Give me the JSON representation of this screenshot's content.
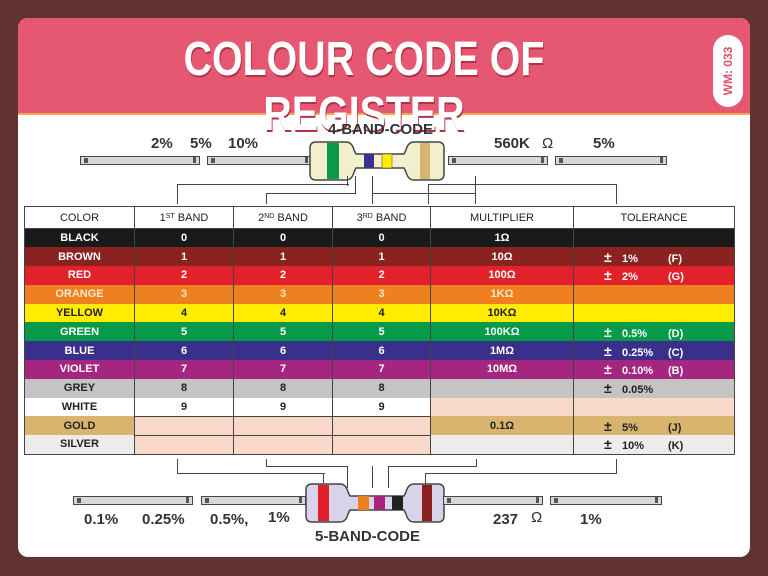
{
  "header": {
    "title": "COLOUR CODE OF REGISTER",
    "badge": "WM: 033"
  },
  "four_band": {
    "label": "4-BAND-CODE",
    "left_text": {
      "a": "2%",
      "b": "5%",
      "c": "10%"
    },
    "right_value": "560K",
    "ohm": "Ω",
    "right_tolerance": "5%",
    "bands": [
      "#0a9a48",
      "#3a3090",
      "#ffea00",
      "#d8b46e"
    ],
    "body_color": "#f2f0cc"
  },
  "five_band": {
    "label": "5-BAND-CODE",
    "left_text": {
      "a": "0.1%",
      "b": "0.25%",
      "c": "0.5%,",
      "d": "1%"
    },
    "right_value": "237",
    "ohm": "Ω",
    "right_tolerance": "1%",
    "bands": [
      "#e2202a",
      "#ef8020",
      "#a8237e",
      "#222222",
      "#8a1f1f"
    ],
    "body_color": "#d9d3ea"
  },
  "table": {
    "headers": {
      "color": "COLOR",
      "band1": "1",
      "band1_sup": "ST",
      "band1_tail": " BAND",
      "band2": "2",
      "band2_sup": "ND",
      "band2_tail": " BAND",
      "band3": "3",
      "band3_sup": "RD",
      "band3_tail": " BAND",
      "multiplier": "MULTIPLIER",
      "tolerance": "TOLERANCE"
    },
    "rows": [
      {
        "name": "BLACK",
        "b1": "0",
        "b2": "0",
        "b3": "0",
        "mult": "1Ω",
        "tol": "",
        "code": "",
        "bg": "#1a1a1a",
        "fg": "#ffffff"
      },
      {
        "name": "BROWN",
        "b1": "1",
        "b2": "1",
        "b3": "1",
        "mult": "10Ω",
        "tol": "1%",
        "code": "(F)",
        "bg": "#8a2220",
        "fg": "#ffffff"
      },
      {
        "name": "RED",
        "b1": "2",
        "b2": "2",
        "b3": "2",
        "mult": "100Ω",
        "tol": "2%",
        "code": "(G)",
        "bg": "#e2222a",
        "fg": "#ffffff"
      },
      {
        "name": "ORANGE",
        "b1": "3",
        "b2": "3",
        "b3": "3",
        "mult": "1KΩ",
        "tol": "",
        "code": "",
        "bg": "#ef8021",
        "fg": "#fde8c8"
      },
      {
        "name": "YELLOW",
        "b1": "4",
        "b2": "4",
        "b3": "4",
        "mult": "10KΩ",
        "tol": "",
        "code": "",
        "bg": "#ffec00",
        "fg": "#222222"
      },
      {
        "name": "GREEN",
        "b1": "5",
        "b2": "5",
        "b3": "5",
        "mult": "100KΩ",
        "tol": "0.5%",
        "code": "(D)",
        "bg": "#079a48",
        "fg": "#ffffff"
      },
      {
        "name": "BLUE",
        "b1": "6",
        "b2": "6",
        "b3": "6",
        "mult": "1MΩ",
        "tol": "0.25%",
        "code": "(C)",
        "bg": "#3a2f8a",
        "fg": "#ffffff"
      },
      {
        "name": "VIOLET",
        "b1": "7",
        "b2": "7",
        "b3": "7",
        "mult": "10MΩ",
        "tol": "0.10%",
        "code": "(B)",
        "bg": "#a5267f",
        "fg": "#ffffff"
      },
      {
        "name": "GREY",
        "b1": "8",
        "b2": "8",
        "b3": "8",
        "mult": "",
        "tol": "0.05%",
        "code": "",
        "bg": "#c4c4c4",
        "fg": "#222222"
      },
      {
        "name": "WHITE",
        "b1": "9",
        "b2": "9",
        "b3": "9",
        "mult": "",
        "tol": "",
        "code": "",
        "bg": "#ffffff",
        "fg": "#222222"
      },
      {
        "name": "GOLD",
        "b1": "",
        "b2": "",
        "b3": "",
        "mult": "0.1Ω",
        "tol": "5%",
        "code": "(J)",
        "bg": "#d8b46e",
        "fg": "#222222"
      },
      {
        "name": "SILVER",
        "b1": "",
        "b2": "",
        "b3": "",
        "mult": "",
        "tol": "10%",
        "code": "(K)",
        "bg": "#ececec",
        "fg": "#222222"
      }
    ],
    "pm_symbol": "±"
  }
}
